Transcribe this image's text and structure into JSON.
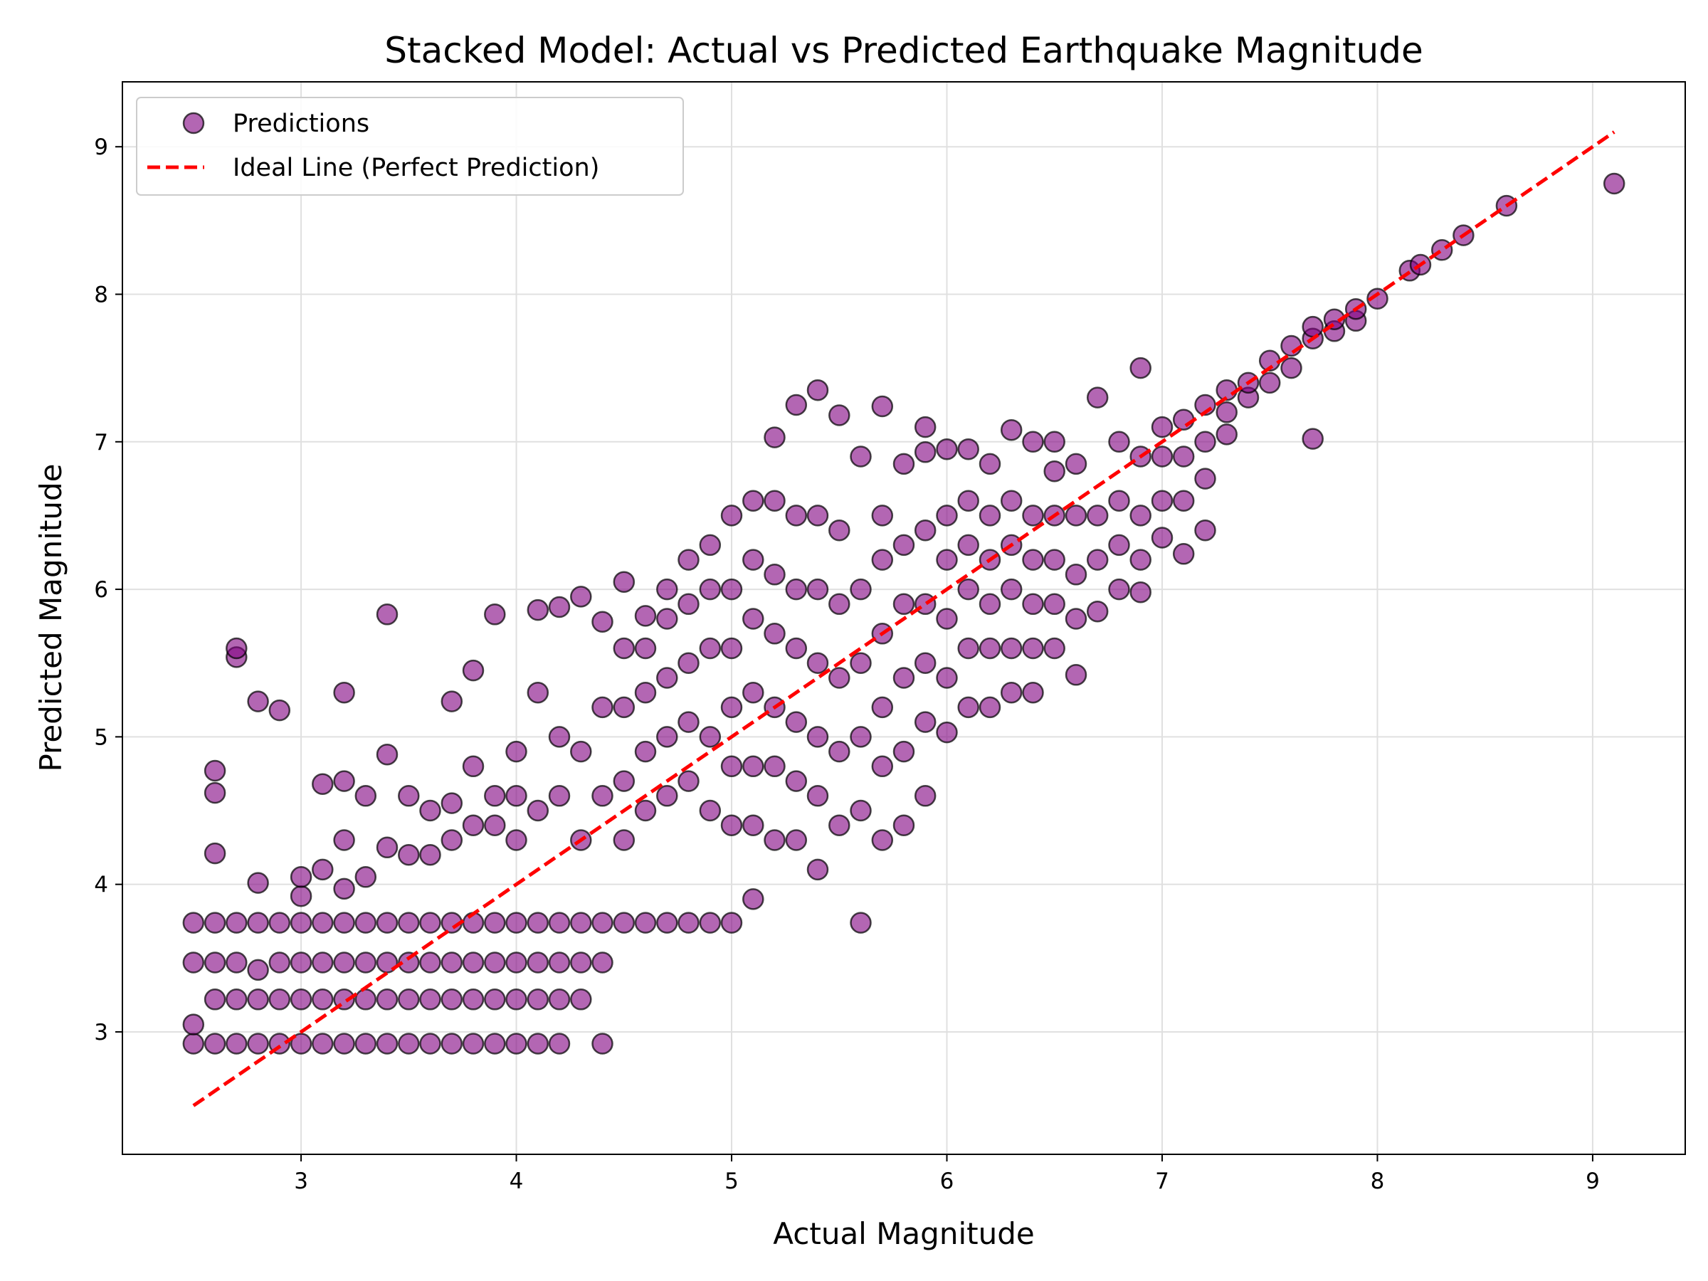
{
  "chart_data": {
    "type": "scatter",
    "title": "Stacked Model: Actual vs Predicted Earthquake Magnitude",
    "xlabel": "Actual Magnitude",
    "ylabel": "Predicted Magnitude",
    "xlim": [
      2.17,
      9.43
    ],
    "ylim": [
      2.17,
      9.44
    ],
    "xticks": [
      3,
      4,
      5,
      6,
      7,
      8,
      9
    ],
    "yticks": [
      3,
      4,
      5,
      6,
      7,
      8,
      9
    ],
    "grid": true,
    "legend_position": "top-left",
    "colors": {
      "points": "#800080",
      "ideal_line": "#ff0000",
      "grid": "#e0e0e0"
    },
    "series": [
      {
        "name": "Predictions",
        "kind": "scatter",
        "x": [
          2.5,
          2.5,
          2.5,
          2.5,
          2.6,
          2.6,
          2.6,
          2.6,
          2.6,
          2.6,
          2.6,
          2.7,
          2.7,
          2.7,
          2.7,
          2.7,
          2.7,
          2.8,
          2.8,
          2.8,
          2.8,
          2.8,
          2.8,
          2.9,
          2.9,
          2.9,
          2.9,
          2.9,
          3.0,
          3.0,
          3.0,
          3.0,
          3.0,
          3.0,
          3.1,
          3.1,
          3.1,
          3.1,
          3.1,
          3.1,
          3.2,
          3.2,
          3.2,
          3.2,
          3.2,
          3.2,
          3.2,
          3.2,
          3.3,
          3.3,
          3.3,
          3.3,
          3.3,
          3.3,
          3.4,
          3.4,
          3.4,
          3.4,
          3.4,
          3.4,
          3.4,
          3.5,
          3.5,
          3.5,
          3.5,
          3.5,
          3.5,
          3.6,
          3.6,
          3.6,
          3.6,
          3.6,
          3.6,
          3.7,
          3.7,
          3.7,
          3.7,
          3.7,
          3.7,
          3.7,
          3.8,
          3.8,
          3.8,
          3.8,
          3.8,
          3.8,
          3.8,
          3.9,
          3.9,
          3.9,
          3.9,
          3.9,
          3.9,
          3.9,
          4.0,
          4.0,
          4.0,
          4.0,
          4.0,
          4.0,
          4.0,
          4.1,
          4.1,
          4.1,
          4.1,
          4.1,
          4.1,
          4.1,
          4.2,
          4.2,
          4.2,
          4.2,
          4.2,
          4.2,
          4.2,
          4.3,
          4.3,
          4.3,
          4.3,
          4.3,
          4.3,
          4.4,
          4.4,
          4.4,
          4.4,
          4.4,
          4.4,
          4.5,
          4.5,
          4.5,
          4.5,
          4.5,
          4.5,
          4.6,
          4.6,
          4.6,
          4.6,
          4.6,
          4.6,
          4.7,
          4.7,
          4.7,
          4.7,
          4.7,
          4.7,
          4.8,
          4.8,
          4.8,
          4.8,
          4.8,
          4.8,
          4.9,
          4.9,
          4.9,
          4.9,
          4.9,
          4.9,
          5.0,
          5.0,
          5.0,
          5.0,
          5.0,
          5.0,
          5.0,
          5.1,
          5.1,
          5.1,
          5.1,
          5.1,
          5.1,
          5.1,
          5.2,
          5.2,
          5.2,
          5.2,
          5.2,
          5.2,
          5.2,
          5.3,
          5.3,
          5.3,
          5.3,
          5.3,
          5.3,
          5.3,
          5.4,
          5.4,
          5.4,
          5.4,
          5.4,
          5.4,
          5.4,
          5.5,
          5.5,
          5.5,
          5.5,
          5.5,
          5.5,
          5.6,
          5.6,
          5.6,
          5.6,
          5.6,
          5.6,
          5.7,
          5.7,
          5.7,
          5.7,
          5.7,
          5.7,
          5.7,
          5.8,
          5.8,
          5.8,
          5.8,
          5.8,
          5.8,
          5.9,
          5.9,
          5.9,
          5.9,
          5.9,
          5.9,
          5.9,
          6.0,
          6.0,
          6.0,
          6.0,
          6.0,
          6.0,
          6.1,
          6.1,
          6.1,
          6.1,
          6.1,
          6.1,
          6.2,
          6.2,
          6.2,
          6.2,
          6.2,
          6.2,
          6.3,
          6.3,
          6.3,
          6.3,
          6.3,
          6.3,
          6.4,
          6.4,
          6.4,
          6.4,
          6.4,
          6.4,
          6.5,
          6.5,
          6.5,
          6.5,
          6.5,
          6.5,
          6.6,
          6.6,
          6.6,
          6.6,
          6.6,
          6.7,
          6.7,
          6.7,
          6.7,
          6.8,
          6.8,
          6.8,
          6.8,
          6.9,
          6.9,
          6.9,
          6.9,
          6.9,
          7.0,
          7.0,
          7.0,
          7.0,
          7.1,
          7.1,
          7.1,
          7.1,
          7.2,
          7.2,
          7.2,
          7.2,
          7.3,
          7.3,
          7.3,
          7.4,
          7.4,
          7.5,
          7.5,
          7.6,
          7.6,
          7.7,
          7.7,
          7.7,
          7.8,
          7.8,
          7.9,
          7.9,
          8.0,
          8.15,
          8.2,
          8.3,
          8.4,
          8.6,
          9.1
        ],
        "y": [
          2.92,
          3.05,
          3.47,
          3.74,
          2.92,
          3.22,
          3.47,
          3.74,
          4.21,
          4.62,
          4.77,
          2.92,
          3.22,
          3.47,
          3.74,
          5.54,
          5.6,
          2.92,
          3.22,
          3.42,
          3.74,
          4.01,
          5.24,
          2.92,
          3.22,
          3.47,
          3.74,
          5.18,
          2.92,
          3.22,
          3.47,
          3.74,
          3.92,
          4.05,
          2.92,
          3.22,
          3.47,
          3.74,
          4.1,
          4.68,
          2.92,
          3.22,
          3.47,
          3.74,
          3.97,
          4.3,
          4.7,
          5.3,
          2.92,
          3.22,
          3.47,
          3.74,
          4.05,
          4.6,
          2.92,
          3.22,
          3.47,
          3.74,
          4.25,
          4.88,
          5.83,
          2.92,
          3.22,
          3.47,
          3.74,
          4.2,
          4.6,
          2.92,
          3.22,
          3.47,
          3.74,
          4.2,
          4.5,
          2.92,
          3.22,
          3.47,
          3.74,
          4.3,
          4.55,
          5.24,
          2.92,
          3.22,
          3.47,
          3.74,
          4.4,
          4.8,
          5.45,
          2.92,
          3.22,
          3.47,
          3.74,
          4.4,
          4.6,
          5.83,
          2.92,
          3.22,
          3.47,
          3.74,
          4.3,
          4.6,
          4.9,
          2.92,
          3.22,
          3.47,
          3.74,
          4.5,
          5.3,
          5.86,
          2.92,
          3.22,
          3.47,
          3.74,
          4.6,
          5.0,
          5.88,
          3.22,
          3.47,
          3.74,
          4.3,
          4.9,
          5.95,
          2.92,
          3.47,
          3.74,
          4.6,
          5.2,
          5.78,
          3.74,
          4.3,
          4.7,
          5.2,
          5.6,
          6.05,
          3.74,
          4.5,
          4.9,
          5.3,
          5.6,
          5.82,
          3.74,
          4.6,
          5.0,
          5.4,
          5.8,
          6.0,
          3.74,
          4.7,
          5.1,
          5.5,
          5.9,
          6.2,
          3.74,
          4.5,
          5.0,
          5.6,
          6.0,
          6.3,
          3.74,
          4.4,
          4.8,
          5.2,
          5.6,
          6.0,
          6.5,
          3.9,
          4.4,
          4.8,
          5.3,
          5.8,
          6.2,
          6.6,
          4.3,
          4.8,
          5.2,
          5.7,
          6.1,
          6.6,
          7.03,
          4.3,
          4.7,
          5.1,
          5.6,
          6.0,
          6.5,
          7.25,
          4.1,
          4.6,
          5.0,
          5.5,
          6.0,
          6.5,
          7.35,
          4.4,
          4.9,
          5.4,
          5.9,
          6.4,
          7.18,
          3.74,
          4.5,
          5.0,
          5.5,
          6.0,
          6.9,
          4.3,
          4.8,
          5.2,
          5.7,
          6.2,
          6.5,
          7.24,
          4.4,
          4.9,
          5.4,
          5.9,
          6.3,
          6.85,
          4.6,
          5.1,
          5.5,
          5.9,
          6.4,
          6.93,
          7.1,
          5.03,
          5.4,
          5.8,
          6.2,
          6.5,
          6.95,
          5.2,
          5.6,
          6.0,
          6.3,
          6.6,
          6.95,
          5.2,
          5.6,
          5.9,
          6.2,
          6.5,
          6.85,
          5.3,
          5.6,
          6.0,
          6.3,
          6.6,
          7.08,
          5.3,
          5.6,
          5.9,
          6.2,
          6.5,
          7.0,
          5.6,
          5.9,
          6.2,
          6.5,
          6.8,
          7.0,
          5.42,
          5.8,
          6.1,
          6.5,
          6.85,
          5.85,
          6.2,
          6.5,
          7.3,
          6.0,
          6.3,
          6.6,
          7.0,
          5.98,
          6.2,
          6.5,
          6.9,
          7.5,
          6.35,
          6.6,
          6.9,
          7.1,
          6.24,
          6.6,
          6.9,
          7.15,
          6.4,
          6.75,
          7.0,
          7.25,
          7.05,
          7.2,
          7.35,
          7.3,
          7.4,
          7.4,
          7.55,
          7.5,
          7.65,
          7.02,
          7.7,
          7.78,
          7.75,
          7.83,
          7.82,
          7.9,
          7.97,
          8.16,
          8.2,
          8.3,
          8.4,
          8.6,
          8.75
        ]
      },
      {
        "name": "Ideal Line (Perfect Prediction)",
        "kind": "line",
        "x": [
          2.5,
          9.1
        ],
        "y": [
          2.5,
          9.1
        ]
      }
    ]
  }
}
